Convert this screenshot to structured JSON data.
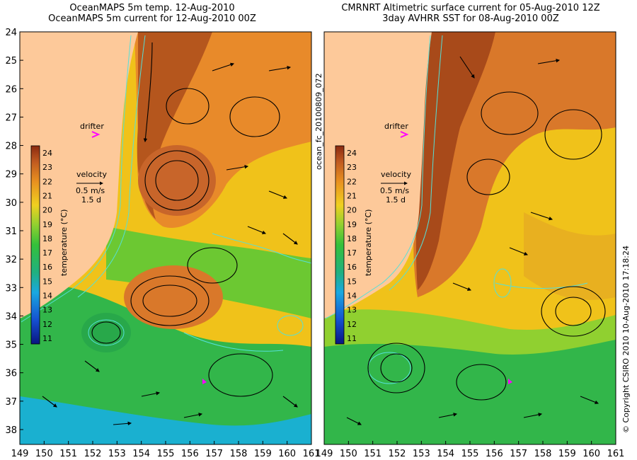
{
  "left_panel": {
    "title_line1": "OceanMAPS 5m temp. 12-Aug-2010",
    "title_line2": "OceanMAPS 5m current for 12-Aug-2010 00Z"
  },
  "right_panel": {
    "title_line1": "CMRNRT Altimetric surface current for 05-Aug-2010 12Z",
    "title_line2": "3day AVHRR SST for 08-Aug-2010 00Z"
  },
  "y_ticks": [
    "24",
    "25",
    "26",
    "27",
    "28",
    "29",
    "30",
    "31",
    "32",
    "33",
    "34",
    "35",
    "36",
    "37",
    "38"
  ],
  "x_ticks": [
    "149",
    "150",
    "151",
    "152",
    "153",
    "154",
    "155",
    "156",
    "157",
    "158",
    "159",
    "160",
    "161"
  ],
  "colorbar": {
    "label": "temperature (°C)",
    "ticks": [
      "24",
      "23",
      "22",
      "21",
      "20",
      "19",
      "18",
      "17",
      "16",
      "15",
      "14",
      "13",
      "12",
      "11"
    ]
  },
  "legend": {
    "drifter": "drifter",
    "velocity": "velocity",
    "speed": "0.5 m/s",
    "time": "1.5 d"
  },
  "side_text": {
    "forecast_id": "ocean_fc_20100809_072",
    "copyright": "© Copyright CSIRO 2010   10-Aug-2010 17:18:24"
  },
  "colors": {
    "land": "#fdc99a",
    "warm": "#b5561d",
    "mid": "#f0c21a",
    "cool": "#32b64a",
    "cold": "#1aa0e0",
    "contour": "#55e0d8",
    "drifter": "#ff00ff"
  }
}
